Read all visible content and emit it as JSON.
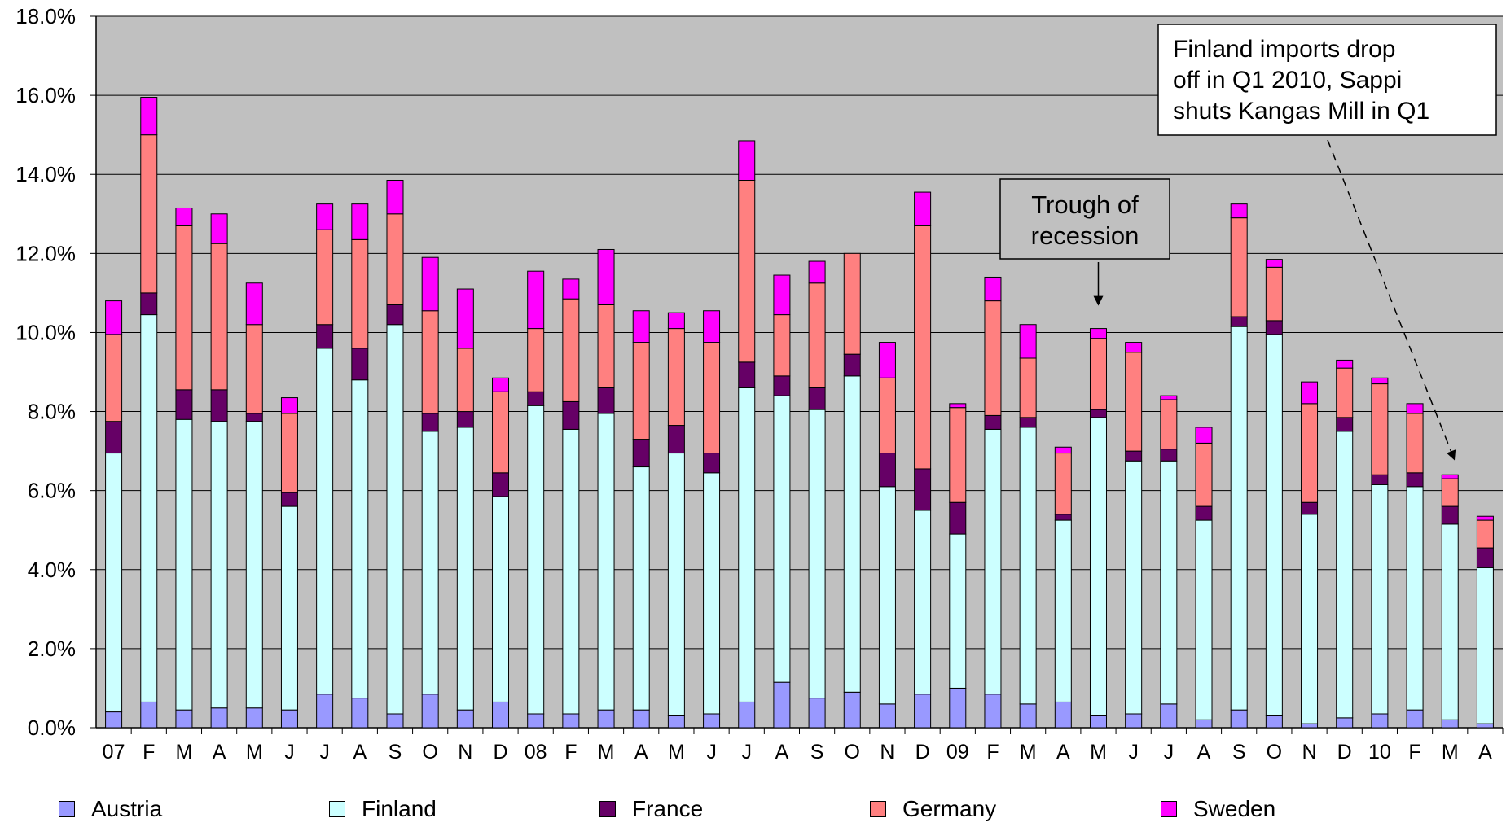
{
  "chart_data": {
    "type": "bar",
    "stacked": true,
    "categories": [
      "07",
      "F",
      "M",
      "A",
      "M",
      "J",
      "J",
      "A",
      "S",
      "O",
      "N",
      "D",
      "08",
      "F",
      "M",
      "A",
      "M",
      "J",
      "J",
      "A",
      "S",
      "O",
      "N",
      "D",
      "09",
      "F",
      "M",
      "A",
      "M",
      "J",
      "J",
      "A",
      "S",
      "O",
      "N",
      "D",
      "10",
      "F",
      "M",
      "A"
    ],
    "series": [
      {
        "name": "Austria",
        "color": "#9999ff",
        "values": [
          0.4,
          0.65,
          0.45,
          0.5,
          0.5,
          0.45,
          0.85,
          0.75,
          0.35,
          0.85,
          0.45,
          0.65,
          0.35,
          0.35,
          0.45,
          0.45,
          0.3,
          0.35,
          0.65,
          1.15,
          0.75,
          0.9,
          0.6,
          0.85,
          1.0,
          0.85,
          0.6,
          0.65,
          0.3,
          0.35,
          0.6,
          0.2,
          0.45,
          0.3,
          0.1,
          0.25,
          0.35,
          0.45,
          0.2,
          0.1
        ]
      },
      {
        "name": "Finland",
        "color": "#ccffff",
        "values": [
          6.55,
          9.8,
          7.35,
          7.25,
          7.25,
          5.15,
          8.75,
          8.05,
          9.85,
          6.65,
          7.15,
          5.2,
          7.8,
          7.2,
          7.5,
          6.15,
          6.65,
          6.1,
          7.95,
          7.25,
          7.3,
          8.0,
          5.5,
          4.65,
          3.9,
          6.7,
          7.0,
          4.6,
          7.55,
          6.4,
          6.15,
          5.05,
          9.7,
          9.65,
          5.3,
          7.25,
          5.8,
          5.65,
          4.95,
          3.95
        ]
      },
      {
        "name": "France",
        "color": "#660066",
        "values": [
          0.8,
          0.55,
          0.75,
          0.8,
          0.2,
          0.35,
          0.6,
          0.8,
          0.5,
          0.45,
          0.4,
          0.6,
          0.35,
          0.7,
          0.65,
          0.7,
          0.7,
          0.5,
          0.65,
          0.5,
          0.55,
          0.55,
          0.85,
          1.05,
          0.8,
          0.35,
          0.25,
          0.15,
          0.2,
          0.25,
          0.3,
          0.35,
          0.25,
          0.35,
          0.3,
          0.35,
          0.25,
          0.35,
          0.45,
          0.5
        ]
      },
      {
        "name": "Germany",
        "color": "#ff8080",
        "values": [
          2.2,
          4.0,
          4.15,
          3.7,
          2.25,
          2.0,
          2.4,
          2.75,
          2.3,
          2.6,
          1.6,
          2.05,
          1.6,
          2.6,
          2.1,
          2.45,
          2.45,
          2.8,
          4.6,
          1.55,
          2.65,
          2.55,
          1.9,
          6.15,
          2.4,
          2.9,
          1.5,
          1.55,
          1.8,
          2.5,
          1.25,
          1.6,
          2.5,
          1.35,
          2.5,
          1.25,
          2.3,
          1.5,
          0.7,
          0.7
        ]
      },
      {
        "name": "Sweden",
        "color": "#ff00ff",
        "values": [
          0.85,
          0.95,
          0.45,
          0.75,
          1.05,
          0.4,
          0.65,
          0.9,
          0.85,
          1.35,
          1.5,
          0.35,
          1.45,
          0.5,
          1.4,
          0.8,
          0.4,
          0.8,
          1.0,
          1.0,
          0.55,
          0.0,
          0.9,
          0.85,
          0.1,
          0.6,
          0.85,
          0.15,
          0.25,
          0.25,
          0.1,
          0.4,
          0.35,
          0.2,
          0.55,
          0.2,
          0.15,
          0.25,
          0.1,
          0.1
        ]
      }
    ],
    "ylim": [
      0,
      18
    ],
    "yticks": [
      "0.0%",
      "2.0%",
      "4.0%",
      "6.0%",
      "8.0%",
      "10.0%",
      "12.0%",
      "14.0%",
      "16.0%",
      "18.0%"
    ],
    "grid": true,
    "plot_background": "#c0c0c0",
    "legend_position": "bottom",
    "annotations": [
      {
        "lines": [
          "Trough of",
          "recession"
        ],
        "target_category_index": 28
      },
      {
        "lines": [
          "Finland imports drop",
          "off in Q1 2010, Sappi",
          "shuts Kangas Mill in Q1"
        ],
        "target_category_index": 38,
        "dashed": true
      }
    ]
  }
}
